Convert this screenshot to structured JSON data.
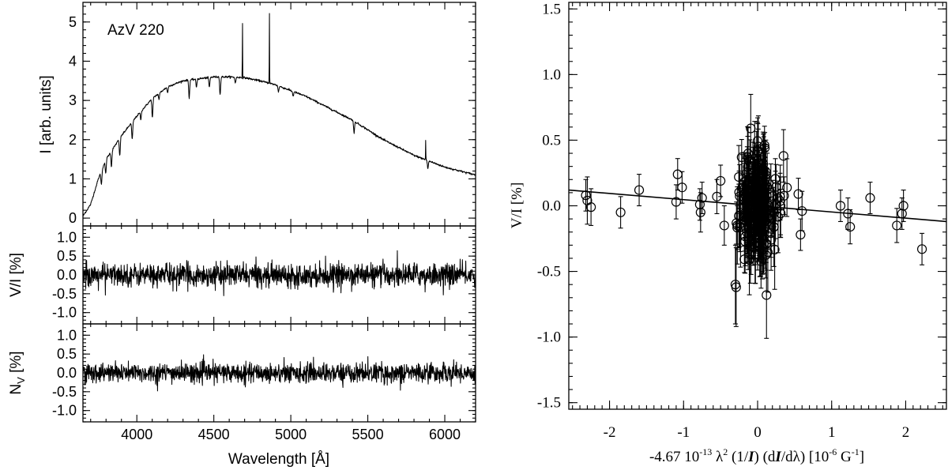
{
  "chart_data": [
    {
      "type": "line",
      "panels": [
        {
          "id": "intensity",
          "annotation": "AzV 220",
          "ylabel": "I [arb. units]",
          "ylim": [
            -0.2,
            5.5
          ],
          "yticks": [
            0,
            1,
            2,
            3,
            4,
            5
          ],
          "ytick_labels": [
            "0",
            "1",
            "2",
            "3",
            "4",
            "5"
          ],
          "continuum": {
            "x": [
              3650,
              3700,
              3750,
              3800,
              3900,
              4000,
              4100,
              4200,
              4300,
              4400,
              4500,
              4600,
              4700,
              4800,
              4900,
              5000,
              5100,
              5200,
              5300,
              5400,
              5500,
              5600,
              5700,
              5800,
              5900,
              6000,
              6100,
              6200
            ],
            "y": [
              0.05,
              0.35,
              1.0,
              1.5,
              2.1,
              2.6,
              3.05,
              3.35,
              3.5,
              3.55,
              3.6,
              3.6,
              3.58,
              3.5,
              3.4,
              3.25,
              3.1,
              2.9,
              2.7,
              2.5,
              2.25,
              2.0,
              1.8,
              1.6,
              1.45,
              1.3,
              1.2,
              1.1
            ]
          },
          "emission_lines": [
            {
              "x": 4686,
              "peak": 5.1
            },
            {
              "x": 4861,
              "peak": 5.3
            },
            {
              "x": 5876,
              "peak": 2.0
            }
          ],
          "absorption_lines": [
            {
              "x": 3770,
              "depth": 0.35
            },
            {
              "x": 3798,
              "depth": 0.35
            },
            {
              "x": 3835,
              "depth": 0.4
            },
            {
              "x": 3889,
              "depth": 0.45
            },
            {
              "x": 3970,
              "depth": 0.45
            },
            {
              "x": 4026,
              "depth": 0.2
            },
            {
              "x": 4101,
              "depth": 0.5
            },
            {
              "x": 4144,
              "depth": 0.15
            },
            {
              "x": 4200,
              "depth": 0.15
            },
            {
              "x": 4340,
              "depth": 0.45
            },
            {
              "x": 4387,
              "depth": 0.2
            },
            {
              "x": 4471,
              "depth": 0.25
            },
            {
              "x": 4541,
              "depth": 0.45
            },
            {
              "x": 4640,
              "depth": 0.15
            },
            {
              "x": 4920,
              "depth": 0.15
            },
            {
              "x": 5015,
              "depth": 0.12
            },
            {
              "x": 5411,
              "depth": 0.3
            },
            {
              "x": 5890,
              "depth": 0.2
            }
          ]
        },
        {
          "id": "stokes_v",
          "ylabel": "V/I [%]",
          "ylim": [
            -1.3,
            1.3
          ],
          "yticks": [
            -1.0,
            -0.5,
            0.0,
            0.5,
            1.0
          ],
          "ytick_labels": [
            "-1.0",
            "-0.5",
            "0.0",
            "0.5",
            "1.0"
          ],
          "noise_amplitude": 0.35
        },
        {
          "id": "null",
          "ylabel_main": "N",
          "ylabel_sub": "V",
          "ylabel_unit": " [%]",
          "ylim": [
            -1.3,
            1.3
          ],
          "yticks": [
            -1.0,
            -0.5,
            0.0,
            0.5,
            1.0
          ],
          "ytick_labels": [
            "-1.0",
            "-0.5",
            "0.0",
            "0.5",
            "1.0"
          ],
          "noise_amplitude": 0.3
        }
      ],
      "xlabel": "Wavelength [Å]",
      "xlim": [
        3650,
        6200
      ],
      "xticks": [
        4000,
        4500,
        5000,
        5500,
        6000
      ],
      "xtick_labels": [
        "4000",
        "4500",
        "5000",
        "5500",
        "6000"
      ]
    },
    {
      "type": "scatter",
      "ylabel": "V/I [%]",
      "xlabel_parts": [
        "-4.67 10",
        "-13",
        " λ",
        "2",
        " (1/",
        "I",
        ") (d",
        "I",
        "/dλ) [10",
        "-6",
        " G",
        "-1",
        "]"
      ],
      "xlim": [
        -2.55,
        2.55
      ],
      "ylim": [
        -1.55,
        1.55
      ],
      "xticks": [
        -2,
        -1,
        0,
        1,
        2
      ],
      "xtick_labels": [
        "-2",
        "-1",
        "0",
        "1",
        "2"
      ],
      "yticks": [
        -1.5,
        -1.0,
        -0.5,
        0.0,
        0.5,
        1.0,
        1.5
      ],
      "ytick_labels": [
        "-1.5",
        "-1.0",
        "-0.5",
        "0.0",
        "0.5",
        "1.0",
        "1.5"
      ],
      "fit_line": {
        "x": [
          -2.55,
          2.55
        ],
        "y": [
          0.12,
          -0.12
        ]
      },
      "outer_points": [
        {
          "x": -2.32,
          "y": 0.08,
          "err": 0.12
        },
        {
          "x": -2.3,
          "y": 0.04,
          "err": 0.18
        },
        {
          "x": -2.25,
          "y": -0.01,
          "err": 0.14
        },
        {
          "x": -1.85,
          "y": -0.05,
          "err": 0.12
        },
        {
          "x": -1.6,
          "y": 0.12,
          "err": 0.12
        },
        {
          "x": -1.1,
          "y": 0.03,
          "err": 0.13
        },
        {
          "x": -1.08,
          "y": 0.24,
          "err": 0.12
        },
        {
          "x": -1.02,
          "y": 0.14,
          "err": 0.12
        },
        {
          "x": -0.78,
          "y": 0.01,
          "err": 0.12
        },
        {
          "x": -0.77,
          "y": -0.05,
          "err": 0.15
        },
        {
          "x": -0.75,
          "y": 0.06,
          "err": 0.12
        },
        {
          "x": -0.55,
          "y": 0.07,
          "err": 0.13
        },
        {
          "x": -0.5,
          "y": 0.19,
          "err": 0.12
        },
        {
          "x": -0.45,
          "y": -0.15,
          "err": 0.15
        },
        {
          "x": -0.3,
          "y": -0.6,
          "err": 0.3
        },
        {
          "x": -0.29,
          "y": -0.62,
          "err": 0.3
        },
        {
          "x": 0.12,
          "y": -0.68,
          "err": 0.33
        },
        {
          "x": 0.35,
          "y": 0.38,
          "err": 0.2
        },
        {
          "x": 0.55,
          "y": 0.09,
          "err": 0.12
        },
        {
          "x": 0.58,
          "y": -0.22,
          "err": 0.12
        },
        {
          "x": 0.6,
          "y": -0.04,
          "err": 0.15
        },
        {
          "x": 1.12,
          "y": 0.0,
          "err": 0.12
        },
        {
          "x": 1.22,
          "y": -0.06,
          "err": 0.12
        },
        {
          "x": 1.25,
          "y": -0.16,
          "err": 0.13
        },
        {
          "x": 1.52,
          "y": 0.06,
          "err": 0.12
        },
        {
          "x": 1.88,
          "y": -0.15,
          "err": 0.13
        },
        {
          "x": 1.95,
          "y": -0.06,
          "err": 0.12
        },
        {
          "x": 1.97,
          "y": 0.0,
          "err": 0.12
        },
        {
          "x": 2.22,
          "y": -0.33,
          "err": 0.12
        }
      ],
      "core_cluster": {
        "x_center": 0.0,
        "x_sigma": 0.12,
        "y_sigma": 0.22,
        "count": 220,
        "err_min": 0.1,
        "err_max": 0.32
      }
    }
  ]
}
